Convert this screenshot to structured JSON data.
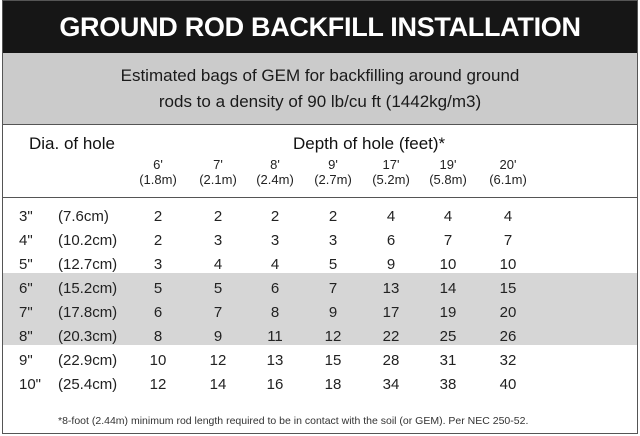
{
  "title": "GROUND ROD BACKFILL INSTALLATION",
  "subtitle": {
    "line1": "Estimated bags of GEM for backfilling around ground",
    "line2": "rods to a density of 90 lb/cu ft (1442kg/m3)"
  },
  "table": {
    "row_header": "Dia. of hole",
    "col_group_header": "Depth of hole (feet)*",
    "columns": [
      {
        "ft": "6'",
        "m": "(1.8m)"
      },
      {
        "ft": "7'",
        "m": "(2.1m)"
      },
      {
        "ft": "8'",
        "m": "(2.4m)"
      },
      {
        "ft": "9'",
        "m": "(2.7m)"
      },
      {
        "ft": "17'",
        "m": "(5.2m)"
      },
      {
        "ft": "19'",
        "m": "(5.8m)"
      },
      {
        "ft": "20'",
        "m": "(6.1m)"
      }
    ],
    "rows": [
      {
        "inch": "3\"",
        "cm": "(7.6cm)",
        "values": [
          "2",
          "2",
          "2",
          "2",
          "4",
          "4",
          "4"
        ]
      },
      {
        "inch": "4\"",
        "cm": "(10.2cm)",
        "values": [
          "2",
          "3",
          "3",
          "3",
          "6",
          "7",
          "7"
        ]
      },
      {
        "inch": "5\"",
        "cm": "(12.7cm)",
        "values": [
          "3",
          "4",
          "4",
          "5",
          "9",
          "10",
          "10"
        ]
      },
      {
        "inch": "6\"",
        "cm": "(15.2cm)",
        "values": [
          "5",
          "5",
          "6",
          "7",
          "13",
          "14",
          "15"
        ]
      },
      {
        "inch": "7\"",
        "cm": "(17.8cm)",
        "values": [
          "6",
          "7",
          "8",
          "9",
          "17",
          "19",
          "20"
        ]
      },
      {
        "inch": "8\"",
        "cm": "(20.3cm)",
        "values": [
          "8",
          "9",
          "11",
          "12",
          "22",
          "25",
          "26"
        ]
      },
      {
        "inch": "9\"",
        "cm": "(22.9cm)",
        "values": [
          "10",
          "12",
          "13",
          "15",
          "28",
          "31",
          "32"
        ]
      },
      {
        "inch": "10\"",
        "cm": "(25.4cm)",
        "values": [
          "12",
          "14",
          "16",
          "18",
          "34",
          "38",
          "40"
        ]
      }
    ]
  },
  "footnote": "*8-foot (2.44m) minimum rod length required to be in contact with the soil (or GEM). Per NEC 250-52.",
  "colors": {
    "title_bg": "#161616",
    "subtitle_bg": "#cbcbcb",
    "band_bg": "#d6d6d6"
  }
}
